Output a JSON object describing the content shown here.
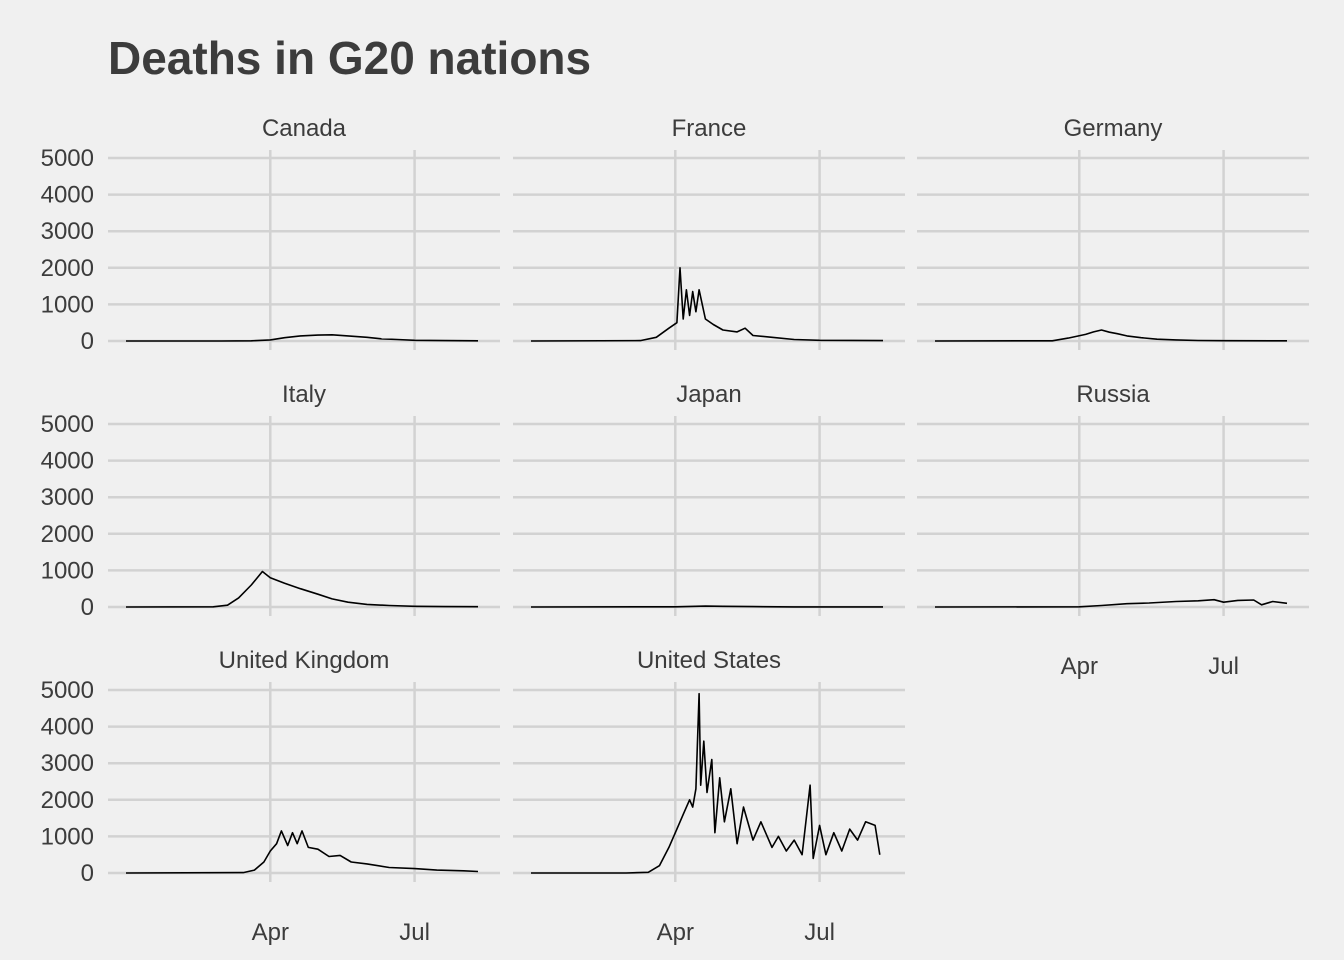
{
  "chart_data": {
    "type": "line",
    "title": "Deaths in G20 nations",
    "xlabel": "",
    "ylabel": "",
    "ylim": [
      0,
      5000
    ],
    "y_ticks": [
      "0",
      "1000",
      "2000",
      "3000",
      "4000",
      "5000"
    ],
    "x_ticks": [
      "Apr",
      "Jul"
    ],
    "grid": true,
    "layout": "facet grid, 3 columns",
    "series_color": "#000000",
    "panels": [
      {
        "name": "Canada",
        "points": [
          [
            "Jan 1",
            0
          ],
          [
            "Mar 1",
            0
          ],
          [
            "Mar 20",
            5
          ],
          [
            "Apr 1",
            30
          ],
          [
            "Apr 10",
            90
          ],
          [
            "Apr 20",
            140
          ],
          [
            "May 1",
            160
          ],
          [
            "May 10",
            170
          ],
          [
            "May 20",
            140
          ],
          [
            "Jun 1",
            100
          ],
          [
            "Jun 10",
            60
          ],
          [
            "Jun 20",
            40
          ],
          [
            "Jul 1",
            20
          ],
          [
            "Jul 20",
            10
          ],
          [
            "Aug 10",
            5
          ]
        ]
      },
      {
        "name": "France",
        "points": [
          [
            "Jan 1",
            0
          ],
          [
            "Mar 10",
            10
          ],
          [
            "Mar 20",
            100
          ],
          [
            "Mar 28",
            350
          ],
          [
            "Apr 2",
            500
          ],
          [
            "Apr 4",
            2000
          ],
          [
            "Apr 6",
            600
          ],
          [
            "Apr 8",
            1400
          ],
          [
            "Apr 10",
            700
          ],
          [
            "Apr 12",
            1350
          ],
          [
            "Apr 14",
            800
          ],
          [
            "Apr 16",
            1400
          ],
          [
            "Apr 20",
            600
          ],
          [
            "Apr 25",
            450
          ],
          [
            "May 1",
            300
          ],
          [
            "May 10",
            250
          ],
          [
            "May 15",
            350
          ],
          [
            "May 20",
            150
          ],
          [
            "Jun 1",
            100
          ],
          [
            "Jun 15",
            40
          ],
          [
            "Jul 1",
            20
          ],
          [
            "Aug 10",
            10
          ]
        ]
      },
      {
        "name": "Germany",
        "points": [
          [
            "Jan 1",
            0
          ],
          [
            "Mar 15",
            5
          ],
          [
            "Mar 25",
            80
          ],
          [
            "Apr 5",
            180
          ],
          [
            "Apr 10",
            250
          ],
          [
            "Apr 15",
            300
          ],
          [
            "Apr 20",
            240
          ],
          [
            "Apr 25",
            200
          ],
          [
            "May 1",
            140
          ],
          [
            "May 10",
            90
          ],
          [
            "May 20",
            50
          ],
          [
            "Jun 1",
            30
          ],
          [
            "Jun 15",
            15
          ],
          [
            "Jul 1",
            8
          ],
          [
            "Aug 10",
            5
          ]
        ]
      },
      {
        "name": "Italy",
        "points": [
          [
            "Jan 1",
            0
          ],
          [
            "Feb 25",
            5
          ],
          [
            "Mar 5",
            50
          ],
          [
            "Mar 12",
            250
          ],
          [
            "Mar 20",
            600
          ],
          [
            "Mar 27",
            970
          ],
          [
            "Apr 1",
            800
          ],
          [
            "Apr 10",
            650
          ],
          [
            "Apr 20",
            500
          ],
          [
            "May 1",
            350
          ],
          [
            "May 10",
            220
          ],
          [
            "May 20",
            130
          ],
          [
            "Jun 1",
            70
          ],
          [
            "Jun 15",
            40
          ],
          [
            "Jul 1",
            20
          ],
          [
            "Jul 20",
            12
          ],
          [
            "Aug 10",
            8
          ]
        ]
      },
      {
        "name": "Japan",
        "points": [
          [
            "Jan 1",
            0
          ],
          [
            "Apr 1",
            5
          ],
          [
            "Apr 20",
            25
          ],
          [
            "May 1",
            20
          ],
          [
            "May 20",
            10
          ],
          [
            "Jun 15",
            3
          ],
          [
            "Aug 10",
            4
          ]
        ]
      },
      {
        "name": "Russia",
        "points": [
          [
            "Jan 1",
            0
          ],
          [
            "Apr 1",
            5
          ],
          [
            "Apr 15",
            40
          ],
          [
            "May 1",
            90
          ],
          [
            "May 15",
            110
          ],
          [
            "Jun 1",
            150
          ],
          [
            "Jun 15",
            170
          ],
          [
            "Jun 25",
            200
          ],
          [
            "Jul 1",
            130
          ],
          [
            "Jul 10",
            180
          ],
          [
            "Jul 20",
            190
          ],
          [
            "Jul 25",
            60
          ],
          [
            "Aug 1",
            150
          ],
          [
            "Aug 10",
            100
          ]
        ]
      },
      {
        "name": "United Kingdom",
        "points": [
          [
            "Jan 1",
            0
          ],
          [
            "Mar 15",
            10
          ],
          [
            "Mar 22",
            80
          ],
          [
            "Mar 28",
            300
          ],
          [
            "Apr 1",
            600
          ],
          [
            "Apr 5",
            800
          ],
          [
            "Apr 8",
            1150
          ],
          [
            "Apr 12",
            750
          ],
          [
            "Apr 15",
            1100
          ],
          [
            "Apr 18",
            800
          ],
          [
            "Apr 21",
            1150
          ],
          [
            "Apr 25",
            700
          ],
          [
            "May 1",
            650
          ],
          [
            "May 8",
            450
          ],
          [
            "May 15",
            480
          ],
          [
            "May 22",
            300
          ],
          [
            "Jun 1",
            250
          ],
          [
            "Jun 15",
            150
          ],
          [
            "Jul 1",
            120
          ],
          [
            "Jul 15",
            80
          ],
          [
            "Aug 1",
            60
          ],
          [
            "Aug 10",
            40
          ]
        ]
      },
      {
        "name": "United States",
        "points": [
          [
            "Jan 1",
            0
          ],
          [
            "Mar 1",
            0
          ],
          [
            "Mar 15",
            20
          ],
          [
            "Mar 22",
            200
          ],
          [
            "Mar 28",
            700
          ],
          [
            "Apr 2",
            1200
          ],
          [
            "Apr 6",
            1600
          ],
          [
            "Apr 10",
            2000
          ],
          [
            "Apr 12",
            1800
          ],
          [
            "Apr 14",
            2300
          ],
          [
            "Apr 16",
            4900
          ],
          [
            "Apr 17",
            2400
          ],
          [
            "Apr 19",
            3600
          ],
          [
            "Apr 21",
            2200
          ],
          [
            "Apr 24",
            3100
          ],
          [
            "Apr 26",
            1100
          ],
          [
            "Apr 29",
            2600
          ],
          [
            "May 2",
            1400
          ],
          [
            "May 6",
            2300
          ],
          [
            "May 10",
            800
          ],
          [
            "May 14",
            1800
          ],
          [
            "May 20",
            900
          ],
          [
            "May 25",
            1400
          ],
          [
            "Jun 1",
            700
          ],
          [
            "Jun 5",
            1000
          ],
          [
            "Jun 10",
            600
          ],
          [
            "Jun 15",
            900
          ],
          [
            "Jun 20",
            500
          ],
          [
            "Jun 25",
            2400
          ],
          [
            "Jun 27",
            400
          ],
          [
            "Jul 1",
            1300
          ],
          [
            "Jul 5",
            500
          ],
          [
            "Jul 10",
            1100
          ],
          [
            "Jul 15",
            600
          ],
          [
            "Jul 20",
            1200
          ],
          [
            "Jul 25",
            900
          ],
          [
            "Jul 30",
            1400
          ],
          [
            "Aug 5",
            1300
          ],
          [
            "Aug 8",
            500
          ]
        ]
      }
    ]
  }
}
